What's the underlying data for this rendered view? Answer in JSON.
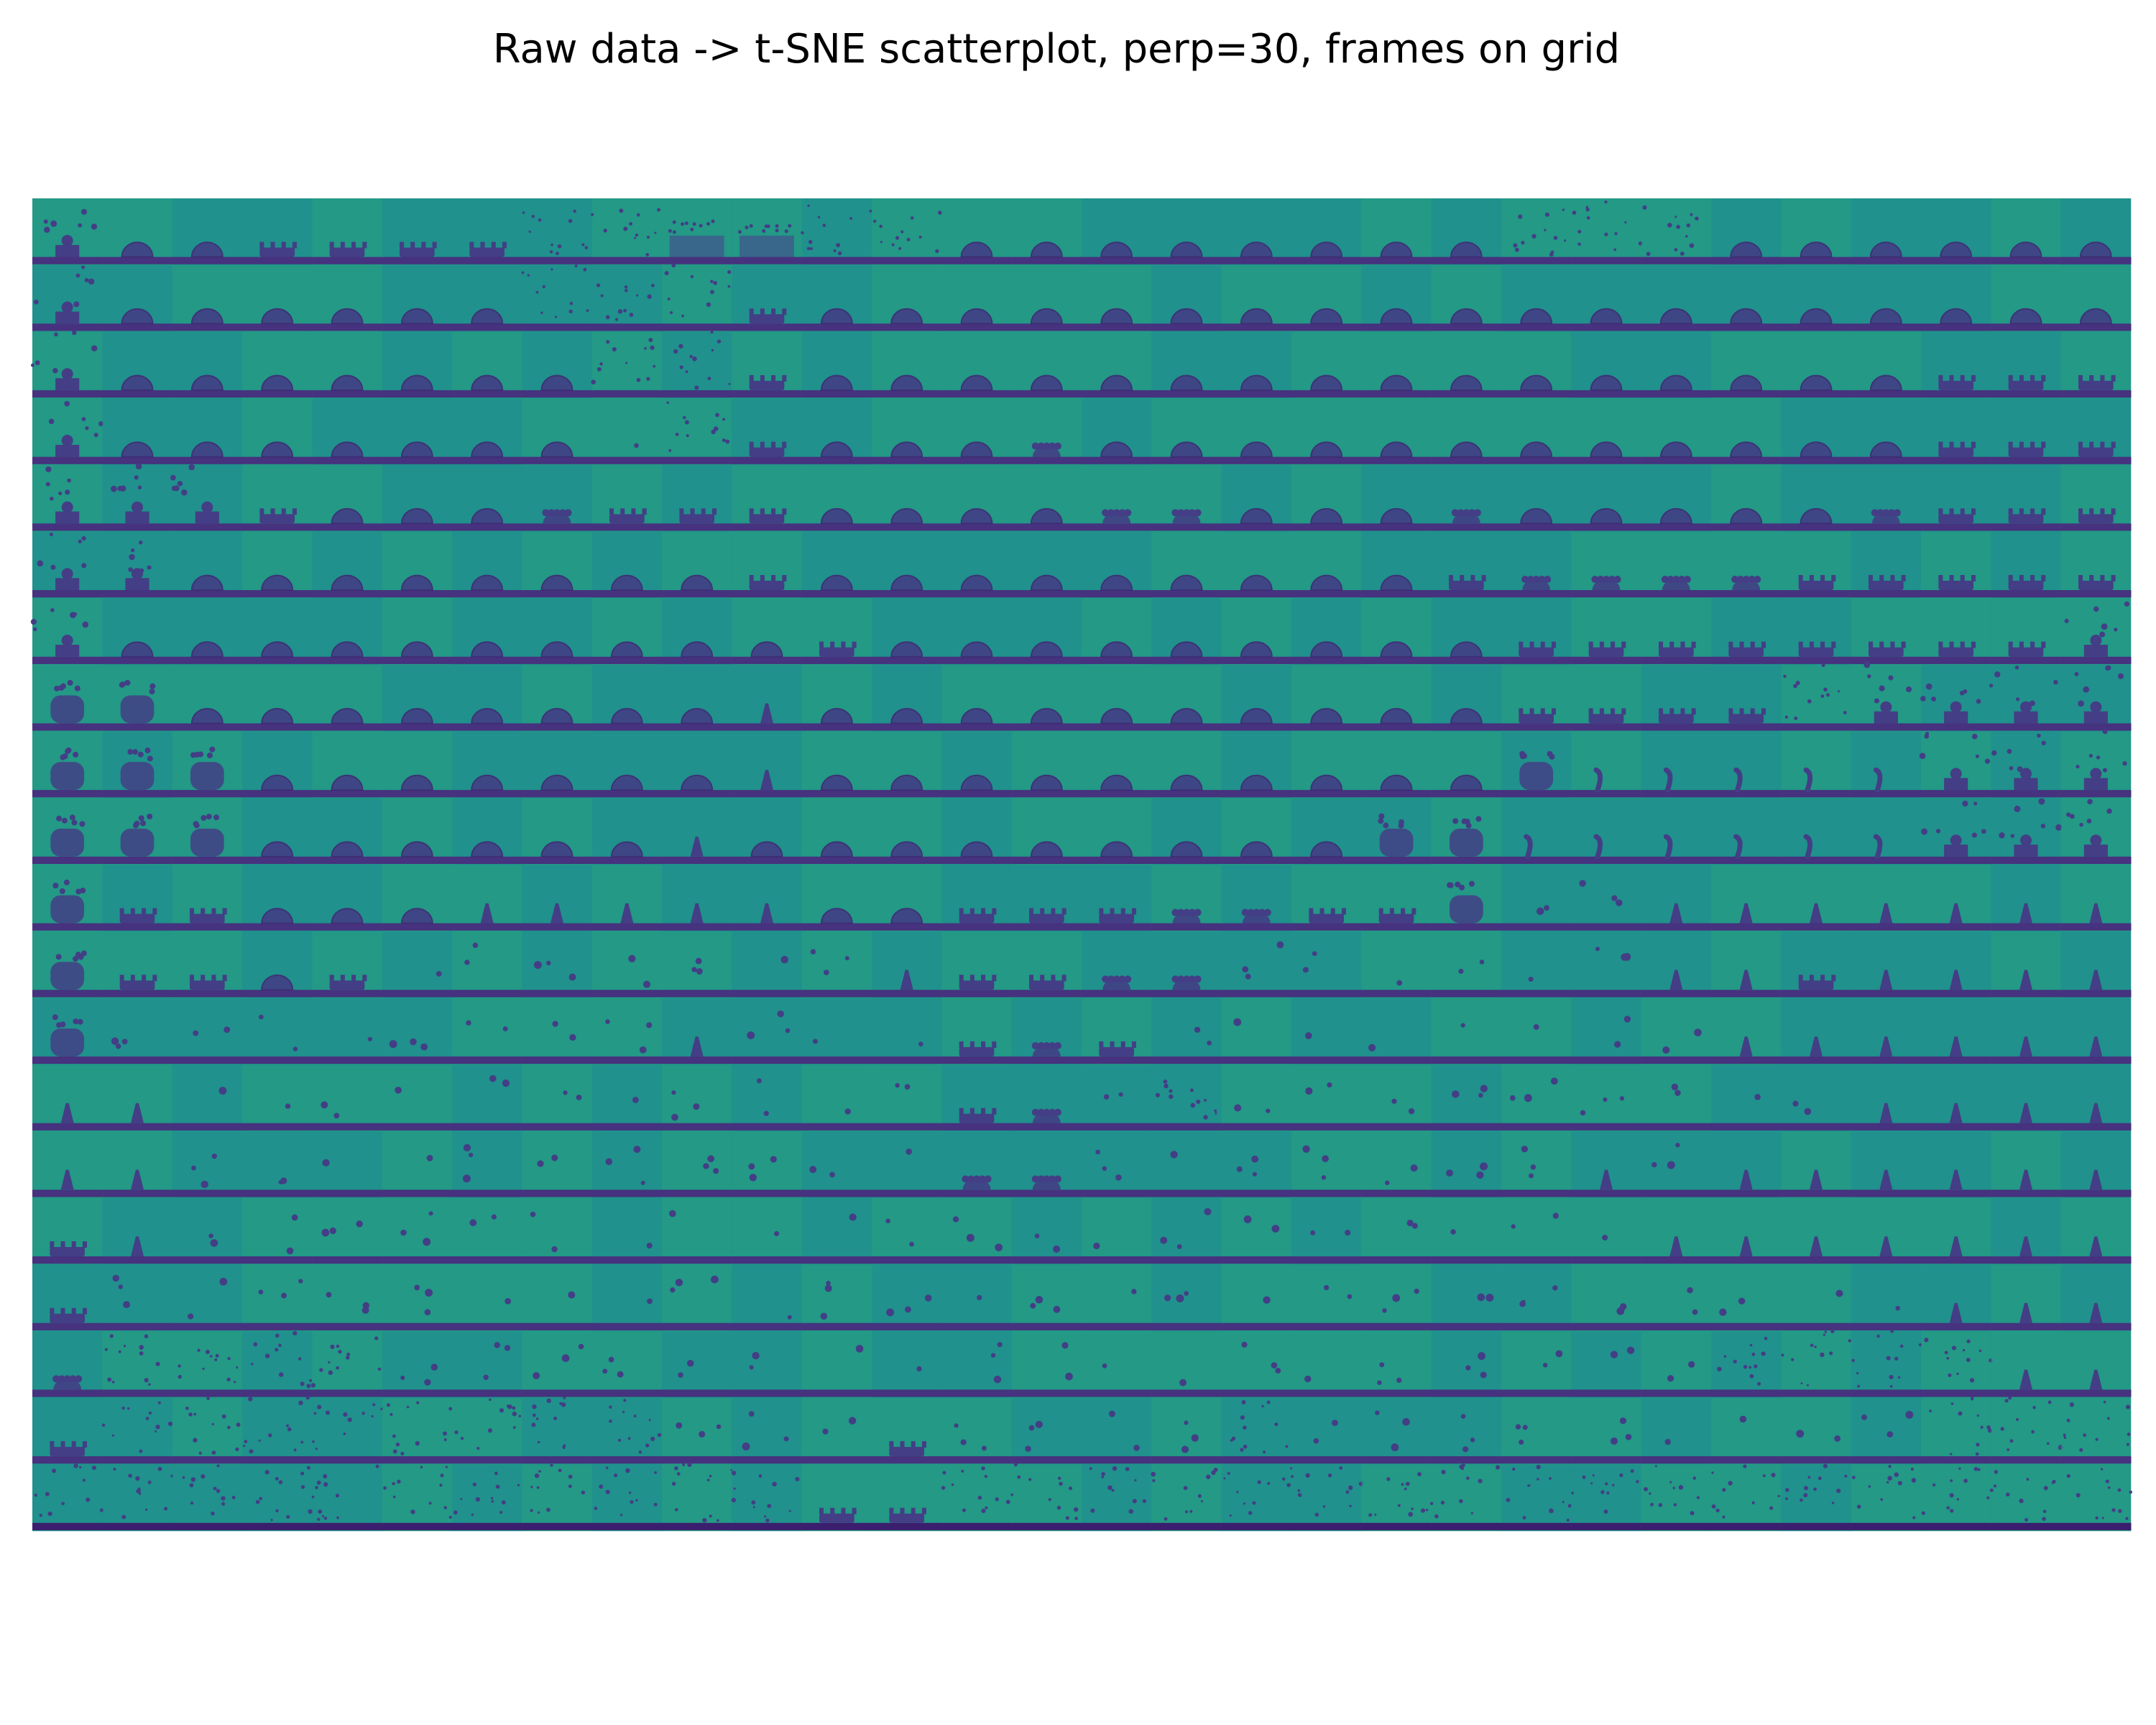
{
  "chart_data": {
    "type": "image-grid",
    "title": "Raw data -> t-SNE scatterplot, perp=30, frames on grid",
    "xlabel": "",
    "ylabel": "",
    "axes_visible": false,
    "grid": {
      "rows": 20,
      "cols": 30
    },
    "colormap": "viridis",
    "colors": {
      "background": "#21918c",
      "background_light": "#27a081",
      "substrate": "#46327e",
      "substrate_dark": "#3b1f6e",
      "droplet": "#433e85",
      "droplet_dark": "#3e2a74",
      "figure_bg": "#ffffff"
    },
    "frames": [
      "KYYFFFFSSWWSSYYYYYYYYSSSYYYYYY",
      "KYYYYYYSSSFYYYYYYYYYYYYYYYYYYY",
      "KYYYYYYYSSFYYYYYYYYYYYYYYYYFFF",
      "KYYYYYYYDSFYYYCYYYYYYYYYYYYFFF",
      "KKKFYYYCFFFYYYYCCYYYCYYYYYCFFF",
      "KKYYYYYYYYFYYYYYYYYYFCCCCFFFFF",
      "KYYYYYYYYYYFYYYYYYYYYFFFFFFFFK",
      "BBYYYYYYYYTYYYYYYYYYYFFFFSKKKK",
      "BBBYYYYYYYTYYYYYYYYYYBLLLLLKKK",
      "BBBYYYYYYTYYYYYYYYYBBLLLLLLKKK",
      "BFFYYYTTTTTYYFFFCCFFBDDTTTTTTT",
      "BFFYFDDDDDDDTFFCCDDDDDDTTFTTTT",
      "BDDDDDDDDTDDDFCFDDDDDDDDTTTTTT",
      "TTDDDDDDDDDDDFCDSDDDDDDDDDTTTT",
      "TTDDDDDDDDDDDCCDDDDDDDTDTTTTTT",
      "FTDDDDDDDDDDDDDDDDDDDDDTTTTTTT",
      "FDDDDDDDDDDDDDDDDDDDDDDDDDDTTT",
      "CSSSSDDDDDDDDDDDDDDDDDDDSSSSTT",
      "FSSSSSSSSDDDFDDDDSDDDDDDDDDSSS",
      "SSSSSSSSSSSFFSSSSSSSSSSSSSSSSS"
    ]
  }
}
